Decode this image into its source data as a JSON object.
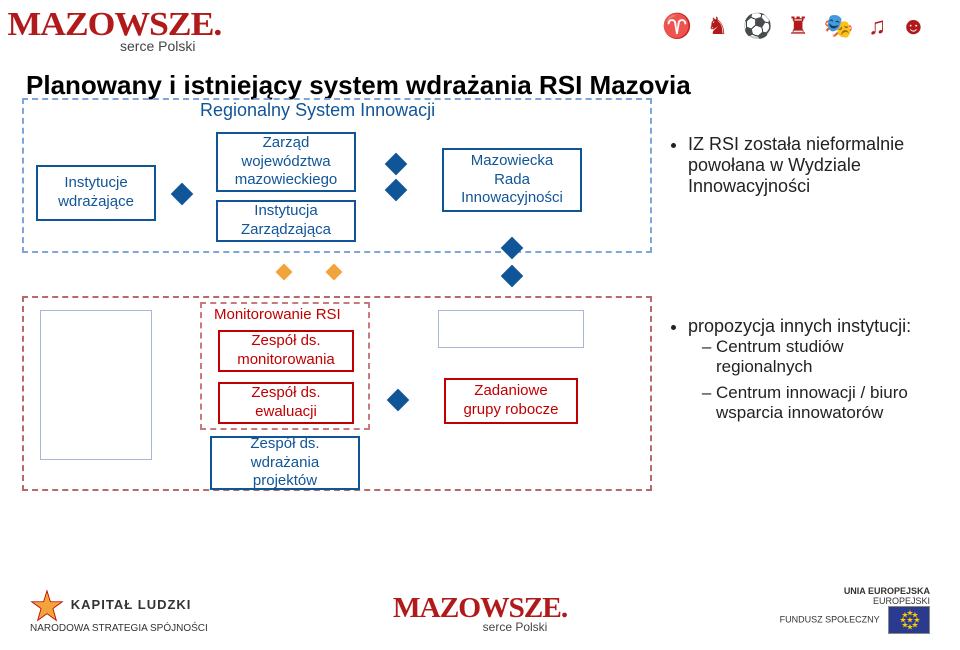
{
  "brand": {
    "name": "MAZOWSZE.",
    "tagline": "serce Polski",
    "color": "#b11a1a",
    "icon_row": "♈ ♞ ⚽ ♜ 🎭 ♫ ☻"
  },
  "title": "Planowany i istniejący system wdrażania RSI Mazovia",
  "top_section": {
    "label": "Regionalny System Innowacji",
    "boxes": {
      "instytucje": "Instytucje\nwdrażające",
      "zarzad": "Zarząd\nwojewództwa\nmazowieckiego",
      "instytucja_zarz": "Instytucja\nZarządzająca",
      "rada": "Mazowiecka\nRada\nInnowacyjności"
    }
  },
  "bottom_section": {
    "label": "Monitorowanie RSI",
    "boxes": {
      "monitor": "Zespół ds.\nmonitorowania",
      "ewaluacja": "Zespół ds.\newaluacji",
      "wdrazania": "Zespół ds.\nwdrażania\nprojektów",
      "zadaniowe": "Zadaniowe\ngrupy robocze"
    }
  },
  "bullets_top": "IZ RSI została nieformalnie powołana w Wydziale Innowacyjności",
  "bullets_bot_lead": "propozycja innych instytucji:",
  "bullets_bot_items": [
    "Centrum studiów regionalnych",
    "Centrum innowacji / biuro wsparcia innowatorów"
  ],
  "footer": {
    "kl_title": "KAPITAŁ LUDZKI",
    "kl_sub": "NARODOWA STRATEGIA SPÓJNOŚCI",
    "eu_line1": "UNIA EUROPEJSKA",
    "eu_line2": "EUROPEJSKI",
    "eu_line3": "FUNDUSZ SPOŁECZNY"
  },
  "style": {
    "blue": "#115599",
    "red": "#c00000",
    "orange": "#f2a43a",
    "dash_blue": "#7fa6d9",
    "dash_red": "#b86a6a"
  }
}
